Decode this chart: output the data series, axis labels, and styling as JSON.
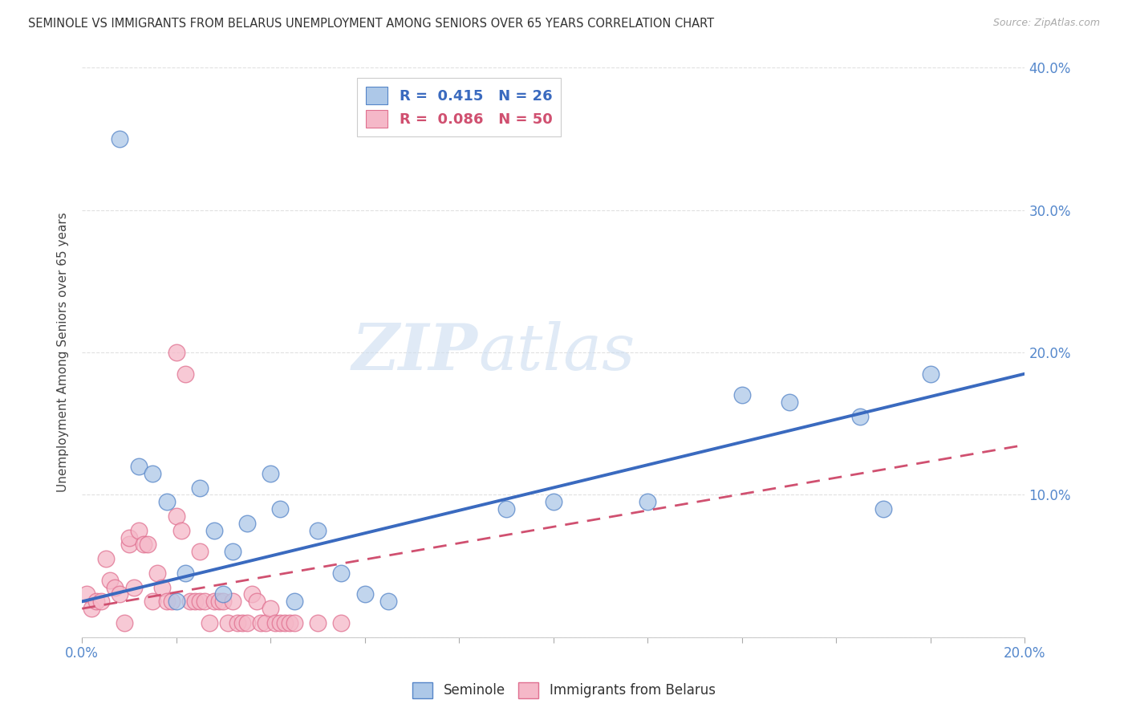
{
  "title": "SEMINOLE VS IMMIGRANTS FROM BELARUS UNEMPLOYMENT AMONG SENIORS OVER 65 YEARS CORRELATION CHART",
  "source": "Source: ZipAtlas.com",
  "ylabel": "Unemployment Among Seniors over 65 years",
  "xlim": [
    0,
    0.2
  ],
  "ylim": [
    0,
    0.4
  ],
  "xticks": [
    0.0,
    0.02,
    0.04,
    0.06,
    0.08,
    0.1,
    0.12,
    0.14,
    0.16,
    0.18,
    0.2
  ],
  "yticks": [
    0.0,
    0.1,
    0.2,
    0.3,
    0.4
  ],
  "seminole_R": 0.415,
  "seminole_N": 26,
  "belarus_R": 0.086,
  "belarus_N": 50,
  "seminole_color": "#adc8e8",
  "seminole_edge_color": "#5585c8",
  "seminole_line_color": "#3a6abf",
  "belarus_color": "#f5b8c8",
  "belarus_edge_color": "#e07090",
  "belarus_line_color": "#d05070",
  "seminole_x": [
    0.008,
    0.012,
    0.015,
    0.018,
    0.02,
    0.022,
    0.025,
    0.028,
    0.03,
    0.032,
    0.035,
    0.04,
    0.042,
    0.045,
    0.05,
    0.055,
    0.06,
    0.065,
    0.09,
    0.1,
    0.12,
    0.14,
    0.15,
    0.165,
    0.17,
    0.18
  ],
  "seminole_y": [
    0.35,
    0.12,
    0.115,
    0.095,
    0.025,
    0.045,
    0.105,
    0.075,
    0.03,
    0.06,
    0.08,
    0.115,
    0.09,
    0.025,
    0.075,
    0.045,
    0.03,
    0.025,
    0.09,
    0.095,
    0.095,
    0.17,
    0.165,
    0.155,
    0.09,
    0.185
  ],
  "belarus_x": [
    0.001,
    0.002,
    0.003,
    0.004,
    0.005,
    0.006,
    0.007,
    0.008,
    0.009,
    0.01,
    0.01,
    0.011,
    0.012,
    0.013,
    0.014,
    0.015,
    0.016,
    0.017,
    0.018,
    0.019,
    0.02,
    0.02,
    0.021,
    0.022,
    0.023,
    0.024,
    0.025,
    0.025,
    0.026,
    0.027,
    0.028,
    0.029,
    0.03,
    0.031,
    0.032,
    0.033,
    0.034,
    0.035,
    0.036,
    0.037,
    0.038,
    0.039,
    0.04,
    0.041,
    0.042,
    0.043,
    0.044,
    0.045,
    0.05,
    0.055
  ],
  "belarus_y": [
    0.03,
    0.02,
    0.025,
    0.025,
    0.055,
    0.04,
    0.035,
    0.03,
    0.01,
    0.065,
    0.07,
    0.035,
    0.075,
    0.065,
    0.065,
    0.025,
    0.045,
    0.035,
    0.025,
    0.025,
    0.085,
    0.2,
    0.075,
    0.185,
    0.025,
    0.025,
    0.025,
    0.06,
    0.025,
    0.01,
    0.025,
    0.025,
    0.025,
    0.01,
    0.025,
    0.01,
    0.01,
    0.01,
    0.03,
    0.025,
    0.01,
    0.01,
    0.02,
    0.01,
    0.01,
    0.01,
    0.01,
    0.01,
    0.01,
    0.01
  ],
  "seminole_line_x0": 0.0,
  "seminole_line_y0": 0.025,
  "seminole_line_x1": 0.2,
  "seminole_line_y1": 0.185,
  "belarus_line_x0": 0.0,
  "belarus_line_y0": 0.02,
  "belarus_line_x1": 0.2,
  "belarus_line_y1": 0.135,
  "watermark_zip": "ZIP",
  "watermark_atlas": "atlas",
  "background_color": "#ffffff",
  "grid_color": "#dddddd",
  "tick_color": "#5588cc"
}
